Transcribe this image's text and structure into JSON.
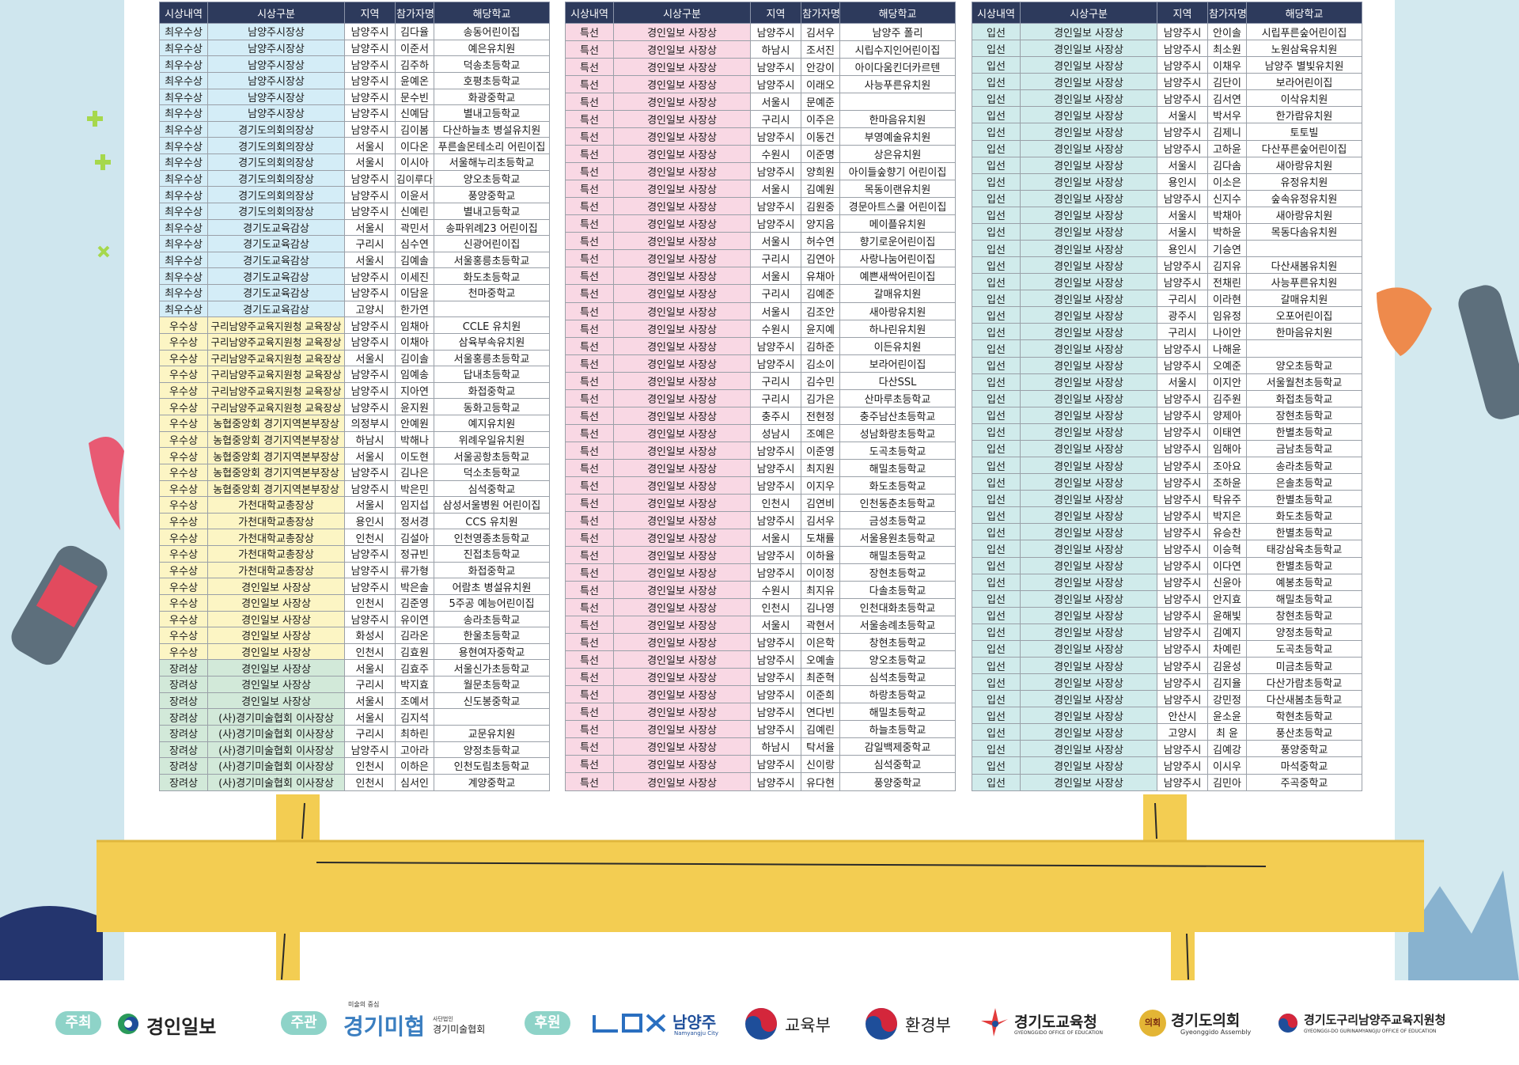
{
  "band_colors": {
    "최우수상": "#d4edf7",
    "우수상": "#fcf5c4",
    "장려상": "#d2e9d9",
    "특선": "#f9d8e4",
    "입선": "#d0ebeb"
  },
  "tables": [
    {
      "headers": [
        "시상내역",
        "시상구분",
        "지역",
        "참가자명",
        "해당학교"
      ],
      "rows": [
        [
          "최우수상",
          "남양주시장상",
          "남양주시",
          "김다율",
          "송동어린이집"
        ],
        [
          "최우수상",
          "남양주시장상",
          "남양주시",
          "이준서",
          "예은유치원"
        ],
        [
          "최우수상",
          "남양주시장상",
          "남양주시",
          "김주하",
          "덕송초등학교"
        ],
        [
          "최우수상",
          "남양주시장상",
          "남양주시",
          "윤예온",
          "호평초등학교"
        ],
        [
          "최우수상",
          "남양주시장상",
          "남양주시",
          "문수빈",
          "화광중학교"
        ],
        [
          "최우수상",
          "남양주시장상",
          "남양주시",
          "신예담",
          "별내고등학교"
        ],
        [
          "최우수상",
          "경기도의회의장상",
          "남양주시",
          "김이봄",
          "다산하늘초 병설유치원"
        ],
        [
          "최우수상",
          "경기도의회의장상",
          "서울시",
          "이다온",
          "푸른솔몬테소리 어린이집"
        ],
        [
          "최우수상",
          "경기도의회의장상",
          "서울시",
          "이시아",
          "서울해누리초등학교"
        ],
        [
          "최우수상",
          "경기도의회의장상",
          "남양주시",
          "김이루다",
          "양오초등학교"
        ],
        [
          "최우수상",
          "경기도의회의장상",
          "남양주시",
          "이윤서",
          "풍양중학교"
        ],
        [
          "최우수상",
          "경기도의회의장상",
          "남양주시",
          "신예린",
          "별내고등학교"
        ],
        [
          "최우수상",
          "경기도교육감상",
          "서울시",
          "곽민서",
          "송파위례23 어린이집"
        ],
        [
          "최우수상",
          "경기도교육감상",
          "구리시",
          "심수연",
          "신광어린이집"
        ],
        [
          "최우수상",
          "경기도교육감상",
          "서울시",
          "김예솔",
          "서울홍릉초등학교"
        ],
        [
          "최우수상",
          "경기도교육감상",
          "남양주시",
          "이세진",
          "화도초등학교"
        ],
        [
          "최우수상",
          "경기도교육감상",
          "남양주시",
          "이담윤",
          "천마중학교"
        ],
        [
          "최우수상",
          "경기도교육감상",
          "고양시",
          "한가연",
          null
        ],
        [
          "우수상",
          "구리남양주교육지원청 교육장상",
          "남양주시",
          "임채아",
          "CCLE 유치원"
        ],
        [
          "우수상",
          "구리남양주교육지원청 교육장상",
          "남양주시",
          "이채아",
          "삼육부속유치원"
        ],
        [
          "우수상",
          "구리남양주교육지원청 교육장상",
          "서울시",
          "김이솔",
          "서울홍릉초등학교"
        ],
        [
          "우수상",
          "구리남양주교육지원청 교육장상",
          "남양주시",
          "임예송",
          "답내초등학교"
        ],
        [
          "우수상",
          "구리남양주교육지원청 교육장상",
          "남양주시",
          "지아연",
          "화접중학교"
        ],
        [
          "우수상",
          "구리남양주교육지원청 교육장상",
          "남양주시",
          "윤지원",
          "동화고등학교"
        ],
        [
          "우수상",
          "농협중앙회 경기지역본부장상",
          "의정부시",
          "안예원",
          "예지유치원"
        ],
        [
          "우수상",
          "농협중앙회 경기지역본부장상",
          "하남시",
          "박해나",
          "위례우일유치원"
        ],
        [
          "우수상",
          "농협중앙회 경기지역본부장상",
          "서울시",
          "이도현",
          "서울공항초등학교"
        ],
        [
          "우수상",
          "농협중앙회 경기지역본부장상",
          "남양주시",
          "김나은",
          "덕소초등학교"
        ],
        [
          "우수상",
          "농협중앙회 경기지역본부장상",
          "남양주시",
          "박은민",
          "심석중학교"
        ],
        [
          "우수상",
          "가천대학교총장상",
          "서울시",
          "임지섭",
          "삼성서울병원 어린이집"
        ],
        [
          "우수상",
          "가천대학교총장상",
          "용인시",
          "정서경",
          "CCS 유치원"
        ],
        [
          "우수상",
          "가천대학교총장상",
          "인천시",
          "김설아",
          "인천영종초등학교"
        ],
        [
          "우수상",
          "가천대학교총장상",
          "남양주시",
          "정규빈",
          "진접초등학교"
        ],
        [
          "우수상",
          "가천대학교총장상",
          "남양주시",
          "류가형",
          "화접중학교"
        ],
        [
          "우수상",
          "경인일보 사장상",
          "남양주시",
          "박은솔",
          "어람초 병설유치원"
        ],
        [
          "우수상",
          "경인일보 사장상",
          "인천시",
          "김준영",
          "5주공 예능어린이집"
        ],
        [
          "우수상",
          "경인일보 사장상",
          "남양주시",
          "유이연",
          "송라초등학교"
        ],
        [
          "우수상",
          "경인일보 사장상",
          "화성시",
          "김라온",
          "한울초등학교"
        ],
        [
          "우수상",
          "경인일보 사장상",
          "인천시",
          "김효원",
          "용현여자중학교"
        ],
        [
          "장려상",
          "경인일보 사장상",
          "서울시",
          "김효주",
          "서울신가초등학교"
        ],
        [
          "장려상",
          "경인일보 사장상",
          "구리시",
          "박지효",
          "월문초등학교"
        ],
        [
          "장려상",
          "경인일보 사장상",
          "서울시",
          "조예서",
          "신도봉중학교"
        ],
        [
          "장려상",
          "(사)경기미술협회 이사장상",
          "서울시",
          "김지석",
          null
        ],
        [
          "장려상",
          "(사)경기미술협회 이사장상",
          "구리시",
          "최하린",
          "교문유치원"
        ],
        [
          "장려상",
          "(사)경기미술협회 이사장상",
          "남양주시",
          "고아라",
          "양정초등학교"
        ],
        [
          "장려상",
          "(사)경기미술협회 이사장상",
          "인천시",
          "이하은",
          "인천도림초등학교"
        ],
        [
          "장려상",
          "(사)경기미술협회 이사장상",
          "인천시",
          "심서인",
          "계양중학교"
        ]
      ]
    },
    {
      "headers": [
        "시상내역",
        "시상구분",
        "지역",
        "참가자명",
        "해당학교"
      ],
      "rows": [
        [
          "특선",
          "경인일보 사장상",
          "남양주시",
          "김서우",
          "남양주 폴리"
        ],
        [
          "특선",
          "경인일보 사장상",
          "하남시",
          "조서진",
          "시립수지인어린이집"
        ],
        [
          "특선",
          "경인일보 사장상",
          "남양주시",
          "안강이",
          "아이다움킨더카르텐"
        ],
        [
          "특선",
          "경인일보 사장상",
          "남양주시",
          "이래오",
          "사능푸른유치원"
        ],
        [
          "특선",
          "경인일보 사장상",
          "서울시",
          "문예준",
          null
        ],
        [
          "특선",
          "경인일보 사장상",
          "구리시",
          "이주은",
          "한마음유치원"
        ],
        [
          "특선",
          "경인일보 사장상",
          "남양주시",
          "이동건",
          "부영예술유치원"
        ],
        [
          "특선",
          "경인일보 사장상",
          "수원시",
          "이준명",
          "상은유치원"
        ],
        [
          "특선",
          "경인일보 사장상",
          "남양주시",
          "양희원",
          "아이들숲향기 어린이집"
        ],
        [
          "특선",
          "경인일보 사장상",
          "서울시",
          "김예원",
          "목동이랜유치원"
        ],
        [
          "특선",
          "경인일보 사장상",
          "남양주시",
          "김원중",
          "경문아트스쿨 어린이집"
        ],
        [
          "특선",
          "경인일보 사장상",
          "남양주시",
          "양지음",
          "메이플유치원"
        ],
        [
          "특선",
          "경인일보 사장상",
          "서울시",
          "허수연",
          "향기로운어린이집"
        ],
        [
          "특선",
          "경인일보 사장상",
          "구리시",
          "김연아",
          "사랑나눔어린이집"
        ],
        [
          "특선",
          "경인일보 사장상",
          "서울시",
          "유채아",
          "예쁜새싹어린이집"
        ],
        [
          "특선",
          "경인일보 사장상",
          "구리시",
          "김예준",
          "갈매유치원"
        ],
        [
          "특선",
          "경인일보 사장상",
          "서울시",
          "김조안",
          "새아랑유치원"
        ],
        [
          "특선",
          "경인일보 사장상",
          "수원시",
          "윤지예",
          "하나린유치원"
        ],
        [
          "특선",
          "경인일보 사장상",
          "남양주시",
          "김하준",
          "이든유치원"
        ],
        [
          "특선",
          "경인일보 사장상",
          "남양주시",
          "김소이",
          "보라어린이집"
        ],
        [
          "특선",
          "경인일보 사장상",
          "구리시",
          "김수민",
          "다산SSL"
        ],
        [
          "특선",
          "경인일보 사장상",
          "구리시",
          "김가은",
          "산마루초등학교"
        ],
        [
          "특선",
          "경인일보 사장상",
          "충주시",
          "전현정",
          "충주남산초등학교"
        ],
        [
          "특선",
          "경인일보 사장상",
          "성남시",
          "조예은",
          "성남화랑초등학교"
        ],
        [
          "특선",
          "경인일보 사장상",
          "남양주시",
          "이준영",
          "도곡초등학교"
        ],
        [
          "특선",
          "경인일보 사장상",
          "남양주시",
          "최지원",
          "해밀초등학교"
        ],
        [
          "특선",
          "경인일보 사장상",
          "남양주시",
          "이지우",
          "화도초등학교"
        ],
        [
          "특선",
          "경인일보 사장상",
          "인천시",
          "김연비",
          "인천동춘초등학교"
        ],
        [
          "특선",
          "경인일보 사장상",
          "남양주시",
          "김서우",
          "금성초등학교"
        ],
        [
          "특선",
          "경인일보 사장상",
          "서울시",
          "도채률",
          "서울용원초등학교"
        ],
        [
          "특선",
          "경인일보 사장상",
          "남양주시",
          "이하율",
          "해밀초등학교"
        ],
        [
          "특선",
          "경인일보 사장상",
          "남양주시",
          "이이정",
          "장현초등학교"
        ],
        [
          "특선",
          "경인일보 사장상",
          "수원시",
          "최지유",
          "다솔초등학교"
        ],
        [
          "특선",
          "경인일보 사장상",
          "인천시",
          "김나영",
          "인천대화초등학교"
        ],
        [
          "특선",
          "경인일보 사장상",
          "서울시",
          "곽현서",
          "서울송례초등학교"
        ],
        [
          "특선",
          "경인일보 사장상",
          "남양주시",
          "이은학",
          "창현초등학교"
        ],
        [
          "특선",
          "경인일보 사장상",
          "남양주시",
          "오예솔",
          "양오초등학교"
        ],
        [
          "특선",
          "경인일보 사장상",
          "남양주시",
          "최준혁",
          "심석초등학교"
        ],
        [
          "특선",
          "경인일보 사장상",
          "남양주시",
          "이준희",
          "하랑초등학교"
        ],
        [
          "특선",
          "경인일보 사장상",
          "남양주시",
          "연다빈",
          "해밀초등학교"
        ],
        [
          "특선",
          "경인일보 사장상",
          "남양주시",
          "김예린",
          "하늘초등학교"
        ],
        [
          "특선",
          "경인일보 사장상",
          "하남시",
          "탁서율",
          "감일백제중학교"
        ],
        [
          "특선",
          "경인일보 사장상",
          "남양주시",
          "신이랑",
          "심석중학교"
        ],
        [
          "특선",
          "경인일보 사장상",
          "남양주시",
          "유다현",
          "풍양중학교"
        ]
      ]
    },
    {
      "headers": [
        "시상내역",
        "시상구분",
        "지역",
        "참가자명",
        "해당학교"
      ],
      "rows": [
        [
          "입선",
          "경인일보 사장상",
          "남양주시",
          "안이솔",
          "시립푸른숲어린이집"
        ],
        [
          "입선",
          "경인일보 사장상",
          "남양주시",
          "최소원",
          "노원삼육유치원"
        ],
        [
          "입선",
          "경인일보 사장상",
          "남양주시",
          "이채우",
          "남양주 별빛유치원"
        ],
        [
          "입선",
          "경인일보 사장상",
          "남양주시",
          "김단이",
          "보라어린이집"
        ],
        [
          "입선",
          "경인일보 사장상",
          "남양주시",
          "김서연",
          "이삭유치원"
        ],
        [
          "입선",
          "경인일보 사장상",
          "서울시",
          "박서우",
          "한가람유치원"
        ],
        [
          "입선",
          "경인일보 사장상",
          "남양주시",
          "김제니",
          "토토빌"
        ],
        [
          "입선",
          "경인일보 사장상",
          "남양주시",
          "고하윤",
          "다산푸른숲어린이집"
        ],
        [
          "입선",
          "경인일보 사장상",
          "서울시",
          "김다솜",
          "새아랑유치원"
        ],
        [
          "입선",
          "경인일보 사장상",
          "용인시",
          "이소은",
          "유정유치원"
        ],
        [
          "입선",
          "경인일보 사장상",
          "남양주시",
          "신지수",
          "숲속유정유치원"
        ],
        [
          "입선",
          "경인일보 사장상",
          "서울시",
          "박채아",
          "새아랑유치원"
        ],
        [
          "입선",
          "경인일보 사장상",
          "서울시",
          "박하윤",
          "목동다솜유치원"
        ],
        [
          "입선",
          "경인일보 사장상",
          "용인시",
          "기승연",
          null
        ],
        [
          "입선",
          "경인일보 사장상",
          "남양주시",
          "김지유",
          "다산새봄유치원"
        ],
        [
          "입선",
          "경인일보 사장상",
          "남양주시",
          "전채린",
          "사능푸른유치원"
        ],
        [
          "입선",
          "경인일보 사장상",
          "구리시",
          "이라현",
          "갈매유치원"
        ],
        [
          "입선",
          "경인일보 사장상",
          "광주시",
          "임유정",
          "오포어린이집"
        ],
        [
          "입선",
          "경인일보 사장상",
          "구리시",
          "나이안",
          "한마음유치원"
        ],
        [
          "입선",
          "경인일보 사장상",
          "남양주시",
          "나해윤",
          null
        ],
        [
          "입선",
          "경인일보 사장상",
          "남양주시",
          "오예준",
          "양오초등학교"
        ],
        [
          "입선",
          "경인일보 사장상",
          "서울시",
          "이지안",
          "서울월천초등학교"
        ],
        [
          "입선",
          "경인일보 사장상",
          "남양주시",
          "김주원",
          "화접초등학교"
        ],
        [
          "입선",
          "경인일보 사장상",
          "남양주시",
          "양제아",
          "장현초등학교"
        ],
        [
          "입선",
          "경인일보 사장상",
          "남양주시",
          "이태연",
          "한별초등학교"
        ],
        [
          "입선",
          "경인일보 사장상",
          "남양주시",
          "임해아",
          "금남초등학교"
        ],
        [
          "입선",
          "경인일보 사장상",
          "남양주시",
          "조아요",
          "송라초등학교"
        ],
        [
          "입선",
          "경인일보 사장상",
          "남양주시",
          "조하윤",
          "은솔초등학교"
        ],
        [
          "입선",
          "경인일보 사장상",
          "남양주시",
          "탁유주",
          "한별초등학교"
        ],
        [
          "입선",
          "경인일보 사장상",
          "남양주시",
          "박지은",
          "화도초등학교"
        ],
        [
          "입선",
          "경인일보 사장상",
          "남양주시",
          "유승찬",
          "한별초등학교"
        ],
        [
          "입선",
          "경인일보 사장상",
          "남양주시",
          "이승혁",
          "태강삼육초등학교"
        ],
        [
          "입선",
          "경인일보 사장상",
          "남양주시",
          "이다연",
          "한별초등학교"
        ],
        [
          "입선",
          "경인일보 사장상",
          "남양주시",
          "신윤아",
          "예봉초등학교"
        ],
        [
          "입선",
          "경인일보 사장상",
          "남양주시",
          "안지효",
          "해밀초등학교"
        ],
        [
          "입선",
          "경인일보 사장상",
          "남양주시",
          "윤해빛",
          "창현초등학교"
        ],
        [
          "입선",
          "경인일보 사장상",
          "남양주시",
          "김예지",
          "양정초등학교"
        ],
        [
          "입선",
          "경인일보 사장상",
          "남양주시",
          "차예린",
          "도곡초등학교"
        ],
        [
          "입선",
          "경인일보 사장상",
          "남양주시",
          "김윤성",
          "미금초등학교"
        ],
        [
          "입선",
          "경인일보 사장상",
          "남양주시",
          "김지율",
          "다산가람초등학교"
        ],
        [
          "입선",
          "경인일보 사장상",
          "남양주시",
          "강민정",
          "다산새봄초등학교"
        ],
        [
          "입선",
          "경인일보 사장상",
          "안산시",
          "윤소윤",
          "학현초등학교"
        ],
        [
          "입선",
          "경인일보 사장상",
          "고양시",
          "최 윤",
          "풍산초등학교"
        ],
        [
          "입선",
          "경인일보 사장상",
          "남양주시",
          "김예강",
          "풍양중학교"
        ],
        [
          "입선",
          "경인일보 사장상",
          "남양주시",
          "이시우",
          "마석중학교"
        ],
        [
          "입선",
          "경인일보 사장상",
          "남양주시",
          "김민아",
          "주곡중학교"
        ]
      ]
    }
  ],
  "footer": {
    "host_label": "주최",
    "host": "경인일보",
    "organizer_label": "주관",
    "organizer_tagline": "미술의 중심",
    "organizer_logo": "경기미협",
    "organizer_small": "사단법인",
    "organizer": "경기미술협회",
    "sponsor_label": "후원",
    "sponsors": [
      {
        "name": "남양주",
        "sub": "Namyangju City"
      },
      {
        "name": "교육부"
      },
      {
        "name": "환경부"
      },
      {
        "name": "경기도교육청",
        "sub": "GYEONGGIDO OFFICE OF EDUCATION"
      },
      {
        "badge": "의회",
        "name": "경기도의회",
        "sub": "Gyeonggido Assembly"
      },
      {
        "name": "경기도구리남양주교육지원청",
        "sub": "GYEONGGI-DO GURINAMYANGJU OFFICE OF EDUCATION"
      }
    ]
  }
}
